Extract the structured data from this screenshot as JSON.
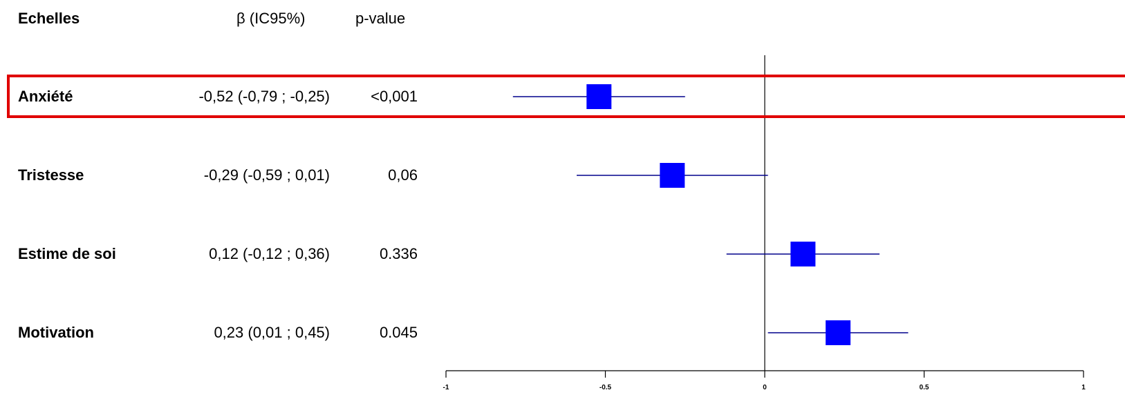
{
  "table": {
    "headers": {
      "scale": "Echelles",
      "beta": "β (IC95%)",
      "pvalue": "p-value"
    },
    "rows": [
      {
        "label": "Anxiété",
        "ci_text": "-0,52 (-0,79 ; -0,25)",
        "p_text": "<0,001"
      },
      {
        "label": "Tristesse",
        "ci_text": "-0,29 (-0,59 ; 0,01)",
        "p_text": "0,06"
      },
      {
        "label": "Estime de soi",
        "ci_text": "0,12 (-0,12 ; 0,36)",
        "p_text": "0.336"
      },
      {
        "label": "Motivation",
        "ci_text": "0,23 (0,01 ; 0,45)",
        "p_text": "0.045"
      }
    ],
    "highlighted_row": "Anxiété"
  },
  "chart_data": {
    "type": "scatter",
    "subtype": "forest-plot",
    "categories": [
      "Anxiété",
      "Tristesse",
      "Estime de soi",
      "Motivation"
    ],
    "estimates": [
      -0.52,
      -0.29,
      0.12,
      0.23
    ],
    "lower": [
      -0.79,
      -0.59,
      -0.12,
      0.01
    ],
    "upper": [
      -0.25,
      0.01,
      0.36,
      0.45
    ],
    "xlim": [
      -1,
      1
    ],
    "xticks": [
      -1,
      -0.5,
      0,
      0.5,
      1
    ],
    "xtick_labels": [
      "-1",
      "-0.5",
      "0",
      "0.5",
      "1"
    ],
    "reference_line": 0,
    "grid": false,
    "colors": {
      "marker": "#0000ff",
      "ci_line": "#00008b",
      "axis": "#000000",
      "highlight": "#e00000"
    }
  }
}
